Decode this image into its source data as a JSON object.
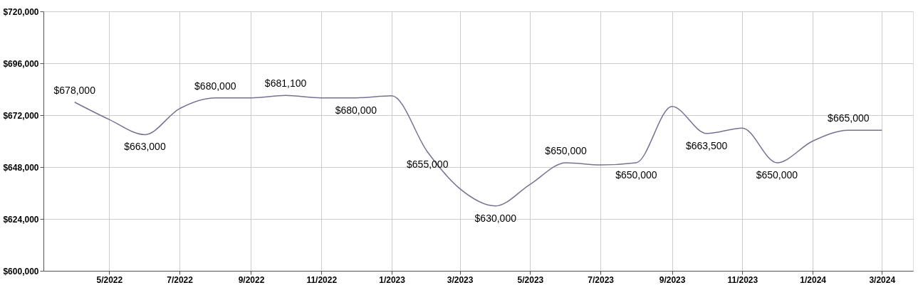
{
  "chart_data": {
    "type": "line",
    "x": [
      "2022-04",
      "2022-05",
      "2022-06",
      "2022-07",
      "2022-08",
      "2022-09",
      "2022-10",
      "2022-11",
      "2022-12",
      "2023-01",
      "2023-02",
      "2023-03",
      "2023-04",
      "2023-05",
      "2023-06",
      "2023-07",
      "2023-08",
      "2023-09",
      "2023-10",
      "2023-11",
      "2023-12",
      "2024-01",
      "2024-02",
      "2024-03"
    ],
    "series": [
      {
        "color": "#757292",
        "values": [
          678000,
          670000,
          663000,
          675000,
          680000,
          680000,
          681100,
          680000,
          680000,
          681000,
          655000,
          638000,
          630000,
          640000,
          650000,
          649000,
          650000,
          676000,
          663500,
          666000,
          650000,
          660000,
          665000,
          665000
        ],
        "value_labels": [
          "$678,000",
          null,
          "$663,000",
          null,
          "$680,000",
          null,
          "$681,100",
          null,
          "$680,000",
          null,
          "$655,000",
          null,
          "$630,000",
          null,
          "$650,000",
          null,
          "$650,000",
          null,
          "$663,500",
          null,
          "$650,000",
          null,
          "$665,000",
          null
        ]
      }
    ],
    "xlim": [
      "2022-03-05",
      "2024-03-28"
    ],
    "xticks": [
      {
        "value": "2022-05",
        "label": "5/2022"
      },
      {
        "value": "2022-07",
        "label": "7/2022"
      },
      {
        "value": "2022-09",
        "label": "9/2022"
      },
      {
        "value": "2022-11",
        "label": "11/2022"
      },
      {
        "value": "2023-01",
        "label": "1/2023"
      },
      {
        "value": "2023-03",
        "label": "3/2023"
      },
      {
        "value": "2023-05",
        "label": "5/2023"
      },
      {
        "value": "2023-07",
        "label": "7/2023"
      },
      {
        "value": "2023-09",
        "label": "9/2023"
      },
      {
        "value": "2023-11",
        "label": "11/2023"
      },
      {
        "value": "2024-01",
        "label": "1/2024"
      },
      {
        "value": "2024-03",
        "label": "3/2024"
      }
    ],
    "ylim": [
      600000,
      720000
    ],
    "yticks": [
      {
        "value": 600000,
        "label": "$600,000"
      },
      {
        "value": 624000,
        "label": "$624,000"
      },
      {
        "value": 648000,
        "label": "$648,000"
      },
      {
        "value": 672000,
        "label": "$672,000"
      },
      {
        "value": 696000,
        "label": "$696,000"
      },
      {
        "value": 720000,
        "label": "$720,000"
      }
    ],
    "grid": true,
    "marker": "none",
    "line_style": "solid"
  }
}
